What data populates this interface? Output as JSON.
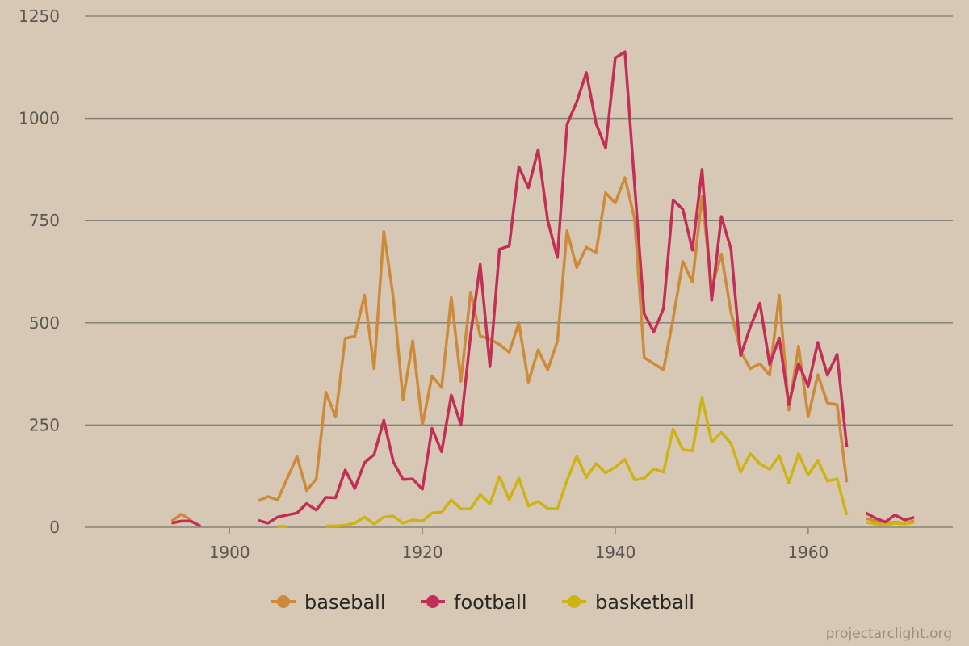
{
  "chart_data": {
    "type": "line",
    "title": "",
    "xlabel": "",
    "ylabel": "",
    "xlim": [
      1885,
      1975
    ],
    "ylim": [
      0,
      1250
    ],
    "xticks": [
      "1900",
      "1920",
      "1940",
      "1960"
    ],
    "yticks": [
      "0",
      "250",
      "500",
      "750",
      "1000",
      "1250"
    ],
    "grid": "horizontal",
    "legend_position": "bottom-center",
    "watermark": "projectarclight.org",
    "series": [
      {
        "name": "baseball",
        "color": "#cd8a3a",
        "segments": [
          {
            "x": [
              1894,
              1895,
              1896
            ],
            "y": [
              15,
              32,
              18
            ]
          },
          {
            "x": [
              1903,
              1904,
              1905,
              1906,
              1907,
              1908,
              1909,
              1910,
              1911,
              1912,
              1913,
              1914,
              1915,
              1916,
              1917,
              1918,
              1919,
              1920,
              1921,
              1922,
              1923,
              1924,
              1925,
              1926,
              1927,
              1928,
              1929,
              1930,
              1931,
              1932,
              1933,
              1934,
              1935,
              1936,
              1937,
              1938,
              1939,
              1940,
              1941,
              1942,
              1943,
              1944,
              1945,
              1946,
              1947,
              1948,
              1949,
              1950,
              1951,
              1952,
              1953,
              1954,
              1955,
              1956,
              1957,
              1958,
              1959,
              1960,
              1961,
              1962,
              1963,
              1964
            ],
            "y": [
              65,
              75,
              67,
              120,
              173,
              90,
              118,
              330,
              270,
              462,
              467,
              568,
              388,
              723,
              560,
              312,
              456,
              250,
              370,
              342,
              562,
              357,
              575,
              468,
              460,
              447,
              428,
              500,
              355,
              434,
              385,
              455,
              725,
              635,
              685,
              672,
              818,
              793,
              855,
              755,
              415,
              400,
              385,
              510,
              650,
              600,
              810,
              585,
              668,
              525,
              430,
              388,
              400,
              372,
              568,
              287,
              443,
              270,
              373,
              304,
              300,
              110
            ]
          },
          {
            "x": [
              1966,
              1967,
              1968,
              1969,
              1970,
              1971
            ],
            "y": [
              22,
              15,
              10,
              12,
              10,
              15
            ]
          }
        ]
      },
      {
        "name": "football",
        "color": "#c22e55",
        "segments": [
          {
            "x": [
              1894,
              1895,
              1896,
              1897
            ],
            "y": [
              10,
              15,
              15,
              3
            ]
          },
          {
            "x": [
              1903,
              1904,
              1905,
              1906,
              1907,
              1908,
              1909,
              1910,
              1911,
              1912,
              1913,
              1914,
              1915,
              1916,
              1917,
              1918,
              1919,
              1920,
              1921,
              1922,
              1923,
              1924,
              1925,
              1926,
              1927,
              1928,
              1929,
              1930,
              1931,
              1932,
              1933,
              1934,
              1935,
              1936,
              1937,
              1938,
              1939,
              1940,
              1941,
              1942,
              1943,
              1944,
              1945,
              1946,
              1947,
              1948,
              1949,
              1950,
              1951,
              1952,
              1953,
              1954,
              1955,
              1956,
              1957,
              1958,
              1959,
              1960,
              1961,
              1962,
              1963,
              1964
            ],
            "y": [
              17,
              10,
              25,
              30,
              35,
              58,
              42,
              73,
              72,
              140,
              95,
              158,
              178,
              262,
              160,
              117,
              118,
              93,
              242,
              185,
              323,
              250,
              470,
              643,
              393,
              680,
              688,
              882,
              830,
              923,
              750,
              660,
              985,
              1040,
              1112,
              988,
              928,
              1148,
              1163,
              840,
              522,
              478,
              535,
              800,
              778,
              678,
              875,
              555,
              760,
              680,
              420,
              490,
              548,
              398,
              463,
              300,
              400,
              345,
              452,
              372,
              423,
              197
            ]
          },
          {
            "x": [
              1966,
              1967,
              1968,
              1969,
              1970,
              1971
            ],
            "y": [
              35,
              22,
              13,
              30,
              18,
              24
            ]
          }
        ]
      },
      {
        "name": "basketball",
        "color": "#cdb314",
        "segments": [
          {
            "x": [
              1905,
              1906
            ],
            "y": [
              2,
              2
            ]
          },
          {
            "x": [
              1910,
              1911,
              1912,
              1913,
              1914,
              1915,
              1916,
              1917,
              1918,
              1919,
              1920,
              1921,
              1922,
              1923,
              1924,
              1925,
              1926,
              1927,
              1928,
              1929,
              1930,
              1931,
              1932,
              1933,
              1934,
              1935,
              1936,
              1937,
              1938,
              1939,
              1940,
              1941,
              1942,
              1943,
              1944,
              1945,
              1946,
              1947,
              1948,
              1949,
              1950,
              1951,
              1952,
              1953,
              1954,
              1955,
              1956,
              1957,
              1958,
              1959,
              1960,
              1961,
              1962,
              1963,
              1964
            ],
            "y": [
              3,
              3,
              5,
              10,
              25,
              8,
              25,
              27,
              10,
              18,
              15,
              35,
              37,
              67,
              45,
              45,
              80,
              57,
              124,
              68,
              120,
              52,
              63,
              46,
              45,
              115,
              174,
              122,
              156,
              133,
              147,
              166,
              116,
              120,
              143,
              135,
              240,
              190,
              187,
              317,
              208,
              232,
              205,
              135,
              180,
              155,
              142,
              175,
              108,
              180,
              128,
              163,
              113,
              118,
              30
            ]
          },
          {
            "x": [
              1966,
              1967,
              1968,
              1969,
              1970,
              1971
            ],
            "y": [
              12,
              8,
              6,
              10,
              8,
              12
            ]
          }
        ]
      }
    ]
  }
}
